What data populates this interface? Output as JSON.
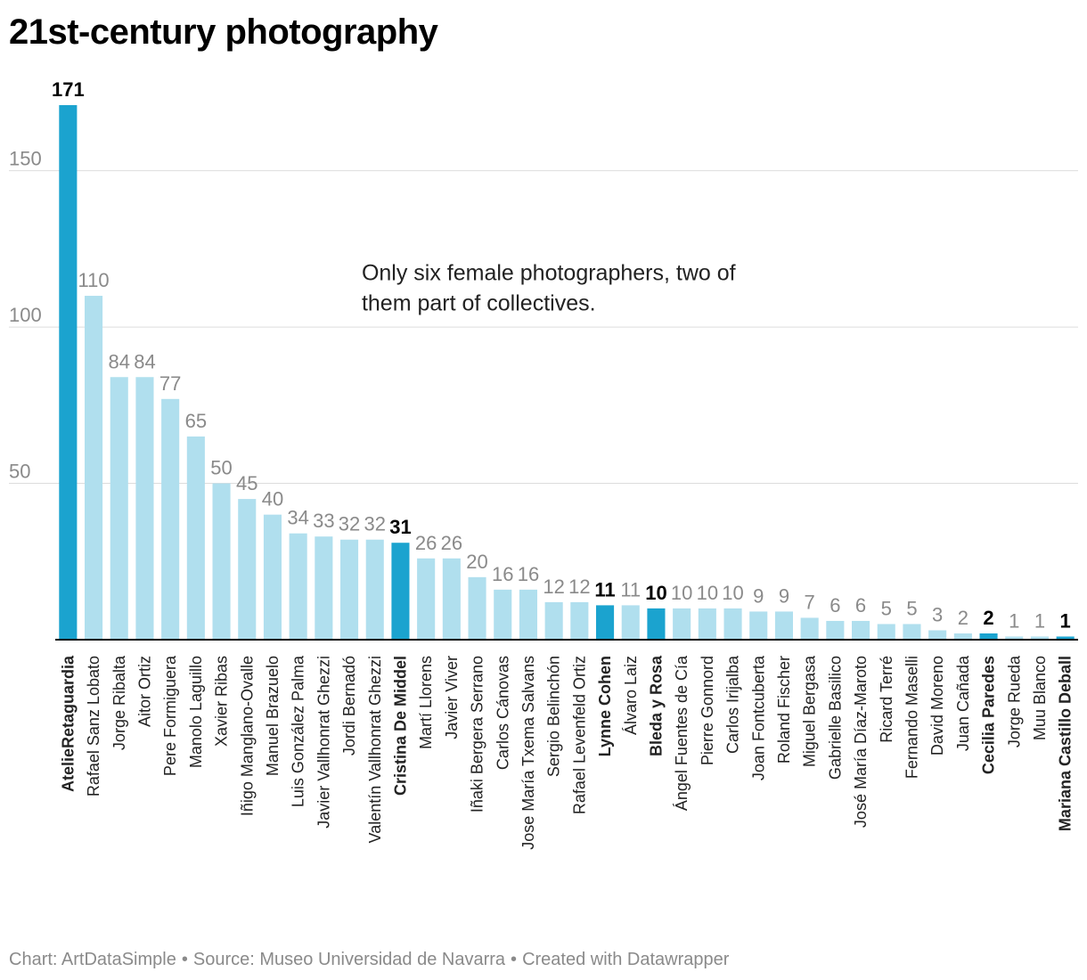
{
  "title": "21st-century photography",
  "footer": {
    "chart_credit": "Chart: ArtDataSimple",
    "source": "Source: Museo Universidad de Navarra",
    "created_with": "Created with Datawrapper",
    "separator": "•"
  },
  "colors": {
    "highlight": "#1ba3cf",
    "default": "#b0dfee",
    "gridline": "#dddddd",
    "axis": "#000000",
    "tick_label": "#8a8a8a",
    "value_label": "#8a8a8a",
    "highlight_label": "#000000"
  },
  "chart_data": {
    "type": "bar",
    "title": "21st-century photography",
    "xlabel": "",
    "ylabel": "",
    "ylim": [
      0,
      171
    ],
    "yticks": [
      50,
      100,
      150
    ],
    "grid": true,
    "legend": "none",
    "annotation": {
      "line1": "Only six female photographers, two of",
      "line2": "them part of collectives.",
      "x_category": "Manuel Brazuelo",
      "y_value": 115
    },
    "categories": [
      "AtelieRetaguardia",
      "Rafael Sanz Lobato",
      "Jorge Ribalta",
      "Aitor Ortiz",
      "Pere Formiguera",
      "Manolo Laguillo",
      "Xavier Ribas",
      "Iñigo Manglano-Ovalle",
      "Manuel Brazuelo",
      "Luis González Palma",
      "Javier Vallhonrat Ghezzi",
      "Jordi Bernadó",
      "Valentín Vallhonrat Ghezzi",
      "Cristina De Middel",
      "Martí Llorens",
      "Javier Viver",
      "Iñaki Bergera Serrano",
      "Carlos Cánovas",
      "Jose María Txema Salvans",
      "Sergio Belinchón",
      "Rafael Levenfeld Ortiz",
      "Lynne Cohen",
      "Álvaro Laiz",
      "Bleda y Rosa",
      "Ángel Fuentes de Cía",
      "Pierre Gonnord",
      "Carlos Irijalba",
      "Joan Fontcuberta",
      "Roland Fischer",
      "Miguel Bergasa",
      "Gabrielle Basilico",
      "José María Díaz-Maroto",
      "Ricard Terré",
      "Fernando Maselli",
      "David Moreno",
      "Juan Cañada",
      "Cecilia Paredes",
      "Jorge Rueda",
      "Muu Blanco",
      "Mariana Castillo Deball"
    ],
    "values": [
      171,
      110,
      84,
      84,
      77,
      65,
      50,
      45,
      40,
      34,
      33,
      32,
      32,
      31,
      26,
      26,
      20,
      16,
      16,
      12,
      12,
      11,
      11,
      10,
      10,
      10,
      10,
      9,
      9,
      7,
      6,
      6,
      5,
      5,
      3,
      2,
      2,
      1,
      1,
      1
    ],
    "highlighted": [
      "AtelieRetaguardia",
      "Cristina De Middel",
      "Lynne Cohen",
      "Bleda y Rosa",
      "Cecilia Paredes",
      "Mariana Castillo Deball"
    ]
  }
}
